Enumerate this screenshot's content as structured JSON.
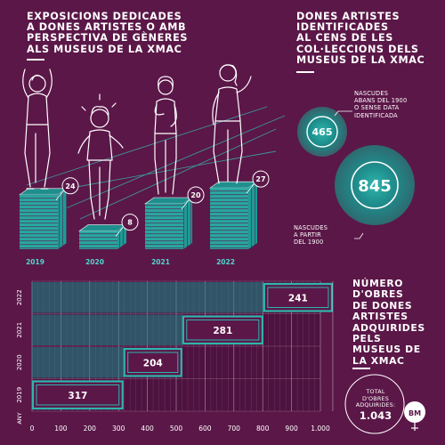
{
  "exhibitions": {
    "title": "EXPOSICIONS DEDICADES\nA DONES ARTISTES O AMB\nPERSPECTIVA DE GÈNERES\nALS MUSEUS DE LA XMAC"
  },
  "census": {
    "title": "DONES ARTISTES\nIDENTIFICADES\nAL CENS DE LES\nCOL·LECCIONS DELS\nMUSEUS DE LA XMAC",
    "before_value": "465",
    "before_label": "NASCUDES\nABANS DEL 1900\nO SENSE DATA\nIDENTIFICADA",
    "after_value": "845",
    "after_label": "NASCUDES\nA PARTIR\nDEL 1900"
  },
  "acquisitions": {
    "title": "NÚMERO\nD'OBRES\nDE DONES\nARTISTES\nADQUIRIDES\nPELS\nMUSEUS DE\nLA XMAC",
    "total_label": "TOTAL\nD'OBRES\nADQUIRIDES:",
    "total_value": "1.043",
    "logo": "BM"
  },
  "chart_data": [
    {
      "type": "bar",
      "title": "EXPOSICIONS DEDICADES A DONES ARTISTES O AMB PERSPECTIVA DE GÈNERES ALS MUSEUS DE LA XMAC",
      "categories": [
        "2019",
        "2020",
        "2021",
        "2022"
      ],
      "values": [
        24,
        8,
        20,
        27
      ],
      "labels": [
        "24",
        "8",
        "20",
        "27"
      ]
    },
    {
      "type": "bar",
      "title": "NÚMERO D'OBRES DE DONES ARTISTES ADQUIRIDES PELS MUSEUS DE LA XMAC",
      "orientation": "horizontal-stacked",
      "ylabel": "ANY",
      "categories": [
        "2019",
        "2020",
        "2021",
        "2022"
      ],
      "values": [
        317,
        204,
        281,
        241
      ],
      "labels": [
        "317",
        "204",
        "281",
        "241"
      ],
      "xlim": [
        0,
        1043
      ],
      "xticks": [
        "0",
        "100",
        "200",
        "300",
        "400",
        "500",
        "600",
        "700",
        "800",
        "900",
        "1.000"
      ]
    }
  ],
  "colors": {
    "background": "#5b1748",
    "teal": "#2fb5ad",
    "teal_dark": "#117f7d",
    "white": "#ffffff"
  }
}
